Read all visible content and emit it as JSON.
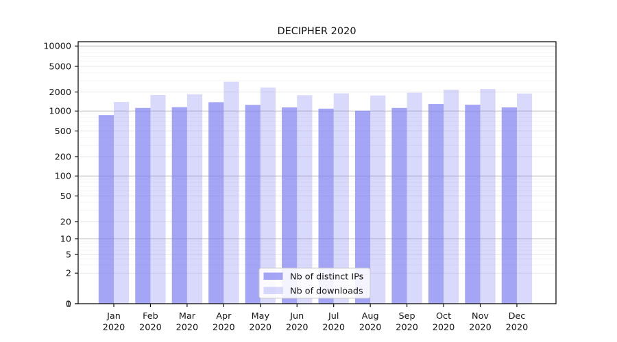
{
  "chart_data": {
    "type": "bar",
    "title": "DECIPHER 2020",
    "xlabel": "",
    "ylabel": "",
    "scale": "symlog",
    "grid": true,
    "legend_position": "lower center",
    "year_label": "2020",
    "categories": [
      "Jan",
      "Feb",
      "Mar",
      "Apr",
      "May",
      "Jun",
      "Jul",
      "Aug",
      "Sep",
      "Oct",
      "Nov",
      "Dec"
    ],
    "y_tick_labels": [
      "10000",
      "5000",
      "2000",
      "1000",
      "500",
      "200",
      "100",
      "50",
      "20",
      "10",
      "5",
      "2",
      "1",
      "0"
    ],
    "y_tick_values": [
      10000,
      5000,
      2000,
      1000,
      500,
      200,
      100,
      50,
      20,
      10,
      5,
      2,
      1,
      0
    ],
    "ylim": [
      0,
      10000
    ],
    "series": [
      {
        "name": "Nb of distinct IPs",
        "color": "#7b7bf0",
        "opacity": 0.68,
        "values": [
          870,
          1120,
          1150,
          1380,
          1250,
          1140,
          1090,
          1010,
          1120,
          1290,
          1260,
          1140
        ]
      },
      {
        "name": "Nb of downloads",
        "color": "#7b7bf0",
        "opacity": 0.29,
        "values": [
          1390,
          1790,
          1840,
          2880,
          2350,
          1780,
          1900,
          1760,
          1950,
          2170,
          2230,
          1890
        ]
      }
    ]
  },
  "colors": {
    "grid_major": "#bcbcbc",
    "grid_labeled": "#e4e4e4",
    "grid_minor": "#f3f3f3",
    "spine": "#111111",
    "legend_border": "#cccccc",
    "legend_bg": "#ffffff"
  }
}
